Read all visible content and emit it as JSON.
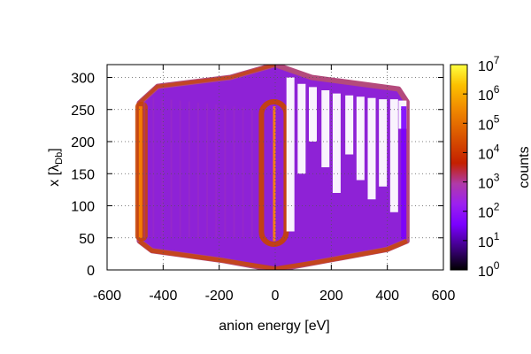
{
  "chart_data": {
    "type": "heatmap",
    "title": "",
    "xlabel": "anion energy [eV]",
    "ylabel_main": "x [λ",
    "ylabel_sub": "Db",
    "ylabel_close": "]",
    "xlim": [
      -600,
      600
    ],
    "ylim": [
      0,
      320
    ],
    "x_ticks": [
      "-600",
      "-400",
      "-200",
      "0",
      "200",
      "400",
      "600"
    ],
    "x_tick_values": [
      -600,
      -400,
      -200,
      0,
      200,
      400,
      600
    ],
    "y_ticks": [
      "0",
      "50",
      "100",
      "150",
      "200",
      "250",
      "300"
    ],
    "y_tick_values": [
      0,
      50,
      100,
      150,
      200,
      250,
      300
    ],
    "grid": true,
    "colorbar": {
      "label": "counts",
      "scale": "log",
      "range": [
        1,
        10000000
      ],
      "tick_base": "10",
      "tick_exponents": [
        "0",
        "1",
        "2",
        "3",
        "4",
        "5",
        "6",
        "7"
      ],
      "palette": [
        "#000000",
        "#3a007a",
        "#7a00ff",
        "#9c20f0",
        "#b03aa8",
        "#c42000",
        "#d85000",
        "#f08800",
        "#fcc000",
        "#ffff40"
      ]
    },
    "region": {
      "description_points": "outline of populated region in data units",
      "outline": [
        [
          -485,
          260
        ],
        [
          -420,
          286
        ],
        [
          -160,
          300
        ],
        [
          0,
          320
        ],
        [
          130,
          300
        ],
        [
          440,
          282
        ],
        [
          470,
          262
        ],
        [
          470,
          45
        ],
        [
          400,
          32
        ],
        [
          150,
          12
        ],
        [
          0,
          0
        ],
        [
          -190,
          15
        ],
        [
          -440,
          30
        ],
        [
          -485,
          45
        ]
      ],
      "left_ridge_x": -490,
      "center_ridge_x": -5,
      "right_edge_x": 465
    },
    "colors": {
      "background_fill": "#8e22d6",
      "edge_fill": "#b44a7c",
      "ridge": "#c84400",
      "hot_spot": "#ff8a00",
      "low": "#7a00ff"
    }
  }
}
